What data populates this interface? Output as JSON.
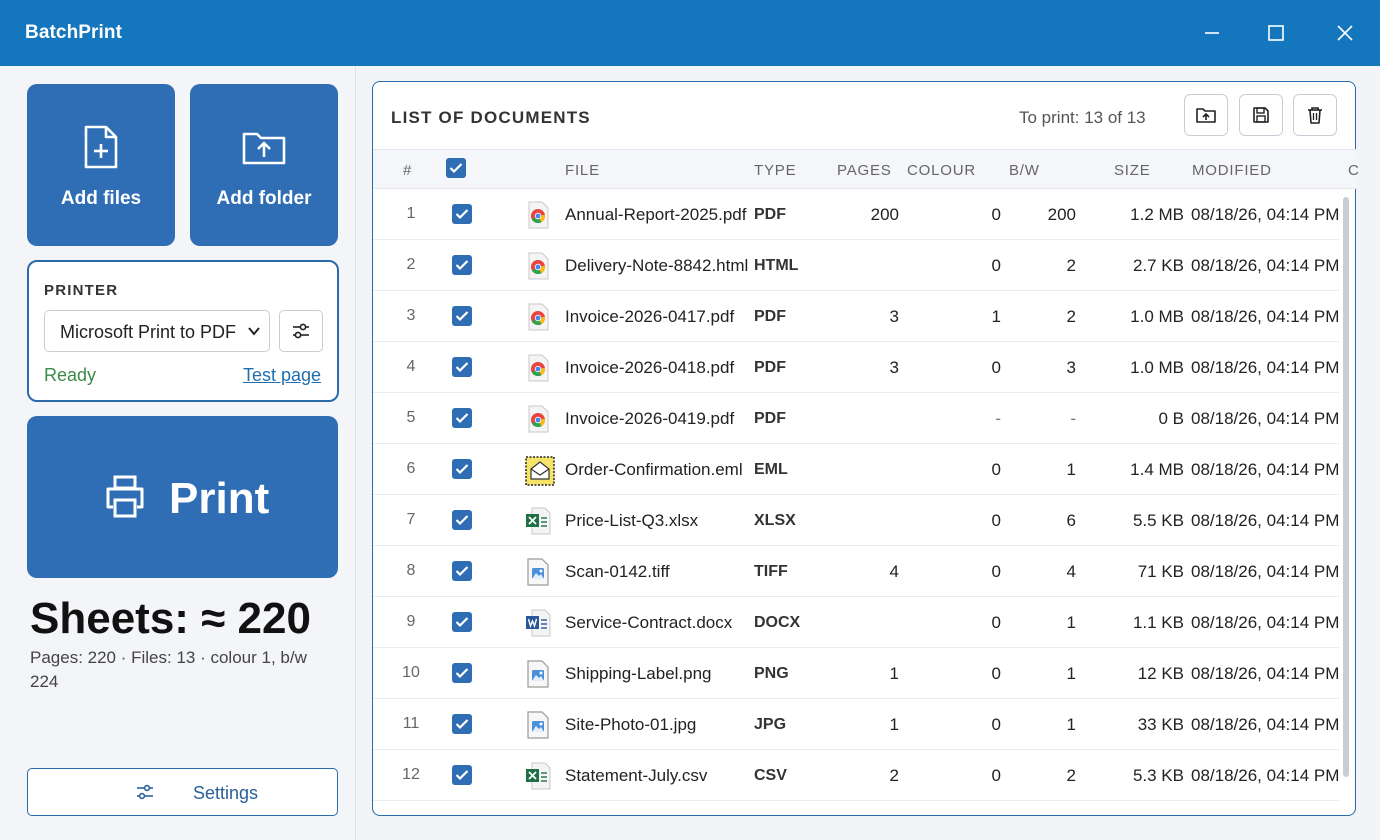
{
  "app": {
    "title": "BatchPrint"
  },
  "sidebar": {
    "add_files_label": "Add files",
    "add_folder_label": "Add folder",
    "printer": {
      "header": "PRINTER",
      "selected": "Microsoft Print to PDF",
      "status": "Ready",
      "test_page_label": "Test page"
    },
    "print_label": "Print",
    "sheets_label": "Sheets: ≈ 220",
    "summary": "Pages: 220 · Files: 13 · colour 1, b/w 224",
    "settings_label": "Settings"
  },
  "documents": {
    "title": "LIST OF DOCUMENTS",
    "to_print": "To print: 13 of 13",
    "columns": {
      "num": "#",
      "file": "FILE",
      "type": "TYPE",
      "pages": "PAGES",
      "colour": "COLOUR",
      "bw": "B/W",
      "size": "SIZE",
      "modified": "MODIFIED",
      "extra": "C"
    },
    "rows": [
      {
        "num": "1",
        "file": "Annual-Report-2025.pdf",
        "type": "PDF",
        "pages": "200",
        "colour": "0",
        "bw": "200",
        "size": "1.2 MB",
        "modified": "08/18/26, 04:14 PM",
        "icon": "chrome-icon",
        "checked": true
      },
      {
        "num": "2",
        "file": "Delivery-Note-8842.html",
        "type": "HTML",
        "pages": "",
        "colour": "0",
        "bw": "2",
        "size": "2.7 KB",
        "modified": "08/18/26, 04:14 PM",
        "icon": "chrome-icon",
        "checked": true
      },
      {
        "num": "3",
        "file": "Invoice-2026-0417.pdf",
        "type": "PDF",
        "pages": "3",
        "colour": "1",
        "bw": "2",
        "size": "1.0 MB",
        "modified": "08/18/26, 04:14 PM",
        "icon": "chrome-icon",
        "checked": true
      },
      {
        "num": "4",
        "file": "Invoice-2026-0418.pdf",
        "type": "PDF",
        "pages": "3",
        "colour": "0",
        "bw": "3",
        "size": "1.0 MB",
        "modified": "08/18/26, 04:14 PM",
        "icon": "chrome-icon",
        "checked": true
      },
      {
        "num": "5",
        "file": "Invoice-2026-0419.pdf",
        "type": "PDF",
        "pages": "",
        "colour": "-",
        "bw": "-",
        "size": "0 B",
        "modified": "08/18/26, 04:14 PM",
        "icon": "chrome-icon",
        "checked": true
      },
      {
        "num": "6",
        "file": "Order-Confirmation.eml",
        "type": "EML",
        "pages": "",
        "colour": "0",
        "bw": "1",
        "size": "1.4 MB",
        "modified": "08/18/26, 04:14 PM",
        "icon": "email-icon",
        "checked": true
      },
      {
        "num": "7",
        "file": "Price-List-Q3.xlsx",
        "type": "XLSX",
        "pages": "",
        "colour": "0",
        "bw": "6",
        "size": "5.5 KB",
        "modified": "08/18/26, 04:14 PM",
        "icon": "excel-icon",
        "checked": true
      },
      {
        "num": "8",
        "file": "Scan-0142.tiff",
        "type": "TIFF",
        "pages": "4",
        "colour": "0",
        "bw": "4",
        "size": "71 KB",
        "modified": "08/18/26, 04:14 PM",
        "icon": "image-icon",
        "checked": true
      },
      {
        "num": "9",
        "file": "Service-Contract.docx",
        "type": "DOCX",
        "pages": "",
        "colour": "0",
        "bw": "1",
        "size": "1.1 KB",
        "modified": "08/18/26, 04:14 PM",
        "icon": "word-icon",
        "checked": true
      },
      {
        "num": "10",
        "file": "Shipping-Label.png",
        "type": "PNG",
        "pages": "1",
        "colour": "0",
        "bw": "1",
        "size": "12 KB",
        "modified": "08/18/26, 04:14 PM",
        "icon": "image-icon",
        "checked": true
      },
      {
        "num": "11",
        "file": "Site-Photo-01.jpg",
        "type": "JPG",
        "pages": "1",
        "colour": "0",
        "bw": "1",
        "size": "33 KB",
        "modified": "08/18/26, 04:14 PM",
        "icon": "image-icon",
        "checked": true
      },
      {
        "num": "12",
        "file": "Statement-July.csv",
        "type": "CSV",
        "pages": "2",
        "colour": "0",
        "bw": "2",
        "size": "5.3 KB",
        "modified": "08/18/26, 04:14 PM",
        "icon": "excel-icon",
        "checked": true
      }
    ]
  },
  "colors": {
    "accent": "#1477bd",
    "button": "#2f6db5",
    "ready": "#3a8a4a"
  }
}
